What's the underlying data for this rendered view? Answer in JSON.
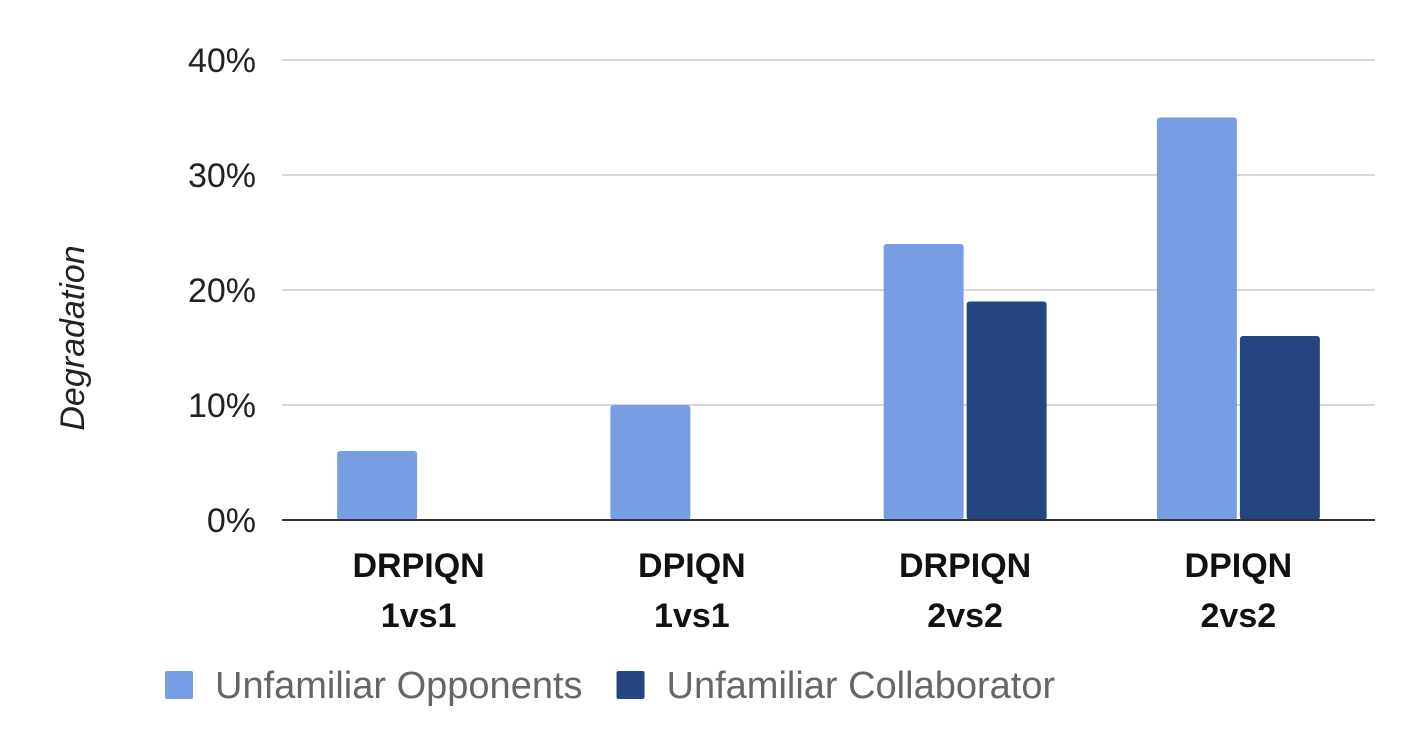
{
  "chart_data": {
    "type": "bar",
    "title": "",
    "xlabel": "",
    "ylabel": "Degradation",
    "categories": [
      [
        "DRPIQN",
        "1vs1"
      ],
      [
        "DPIQN",
        "1vs1"
      ],
      [
        "DRPIQN",
        "2vs2"
      ],
      [
        "DPIQN",
        "2vs2"
      ]
    ],
    "series": [
      {
        "name": "Unfamiliar Opponents",
        "color": "#779ee5",
        "values": [
          6,
          10,
          24,
          35
        ]
      },
      {
        "name": "Unfamiliar Collaborator",
        "color": "#264682",
        "values": [
          0,
          0,
          19,
          16
        ]
      }
    ],
    "ylim": [
      0,
      40
    ],
    "yticks": [
      0,
      10,
      20,
      30,
      40
    ],
    "y_tick_suffix": "%",
    "grid": true,
    "legend_position": "bottom"
  }
}
